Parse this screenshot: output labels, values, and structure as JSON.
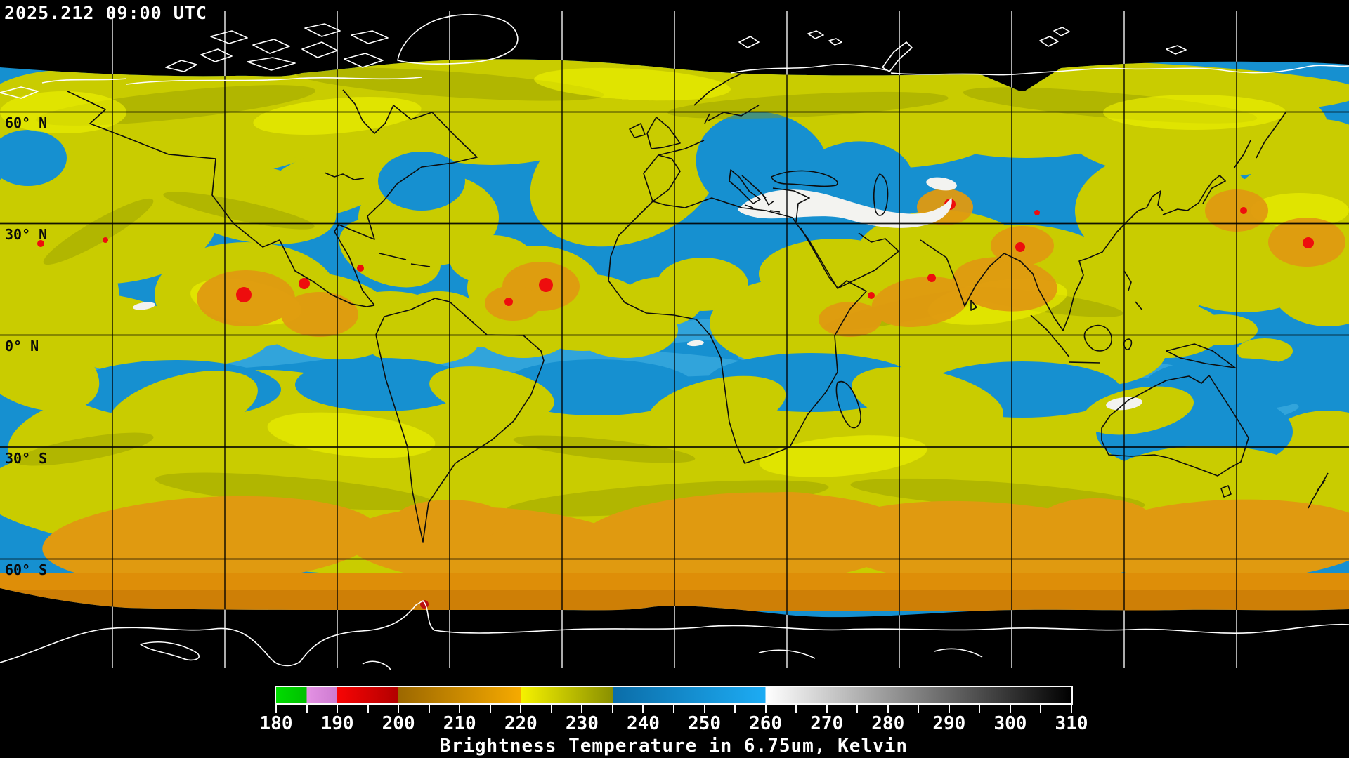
{
  "header": {
    "timestamp": "2025.212 09:00 UTC"
  },
  "map": {
    "projection": "equirectangular global composite",
    "latitude_labels": [
      {
        "text": "60° N"
      },
      {
        "text": "30° N"
      },
      {
        "text": "0° N"
      },
      {
        "text": "30° S"
      },
      {
        "text": "60° S"
      }
    ],
    "grid": {
      "lat_step_deg": 30,
      "lon_step_deg": 30,
      "grid_color_over_data": "#000000",
      "grid_color_over_void": "#f8f8f8"
    },
    "colors": {
      "void_background": "#000000",
      "moist_blue": "#1690d0",
      "cyan_streak": "#49b4e4",
      "cloud_yellow": "#c9cc00",
      "olive_shadow": "#8f9700",
      "bright_yellow": "#f0f400",
      "cold_orange": "#e09a10",
      "storm_red": "#ee0d0d",
      "warm_white_patch": "#f3f3f0",
      "coastline_over_data": "#0c0c0c",
      "coastline_over_void": "#ffffff"
    }
  },
  "colorbar": {
    "caption": "Brightness Temperature in 6.75um, Kelvin",
    "unit": "Kelvin",
    "min": 180,
    "max": 310,
    "minor_tick_step": 5,
    "major_tick_step": 10,
    "major_tick_labels": [
      "180",
      "190",
      "200",
      "210",
      "220",
      "230",
      "240",
      "250",
      "260",
      "270",
      "280",
      "290",
      "300",
      "310"
    ],
    "segments": [
      {
        "from": 180,
        "to": 185,
        "name": "green",
        "c0": "#00dc00",
        "c1": "#00c000"
      },
      {
        "from": 185,
        "to": 190,
        "name": "violet",
        "c0": "#e492e4",
        "c1": "#cd7bd0"
      },
      {
        "from": 190,
        "to": 200,
        "name": "red",
        "c0": "#f80404",
        "c1": "#b20000"
      },
      {
        "from": 200,
        "to": 220,
        "name": "orange",
        "c0": "#9c6800",
        "c1": "#f6aa00"
      },
      {
        "from": 220,
        "to": 235,
        "name": "yellow",
        "c0": "#f6f200",
        "c1": "#8a9000"
      },
      {
        "from": 235,
        "to": 260,
        "name": "blue",
        "c0": "#0b6da8",
        "c1": "#1dacf4"
      },
      {
        "from": 260,
        "to": 310,
        "name": "grayscale",
        "c0": "#ffffff",
        "c1": "#000000"
      }
    ]
  }
}
